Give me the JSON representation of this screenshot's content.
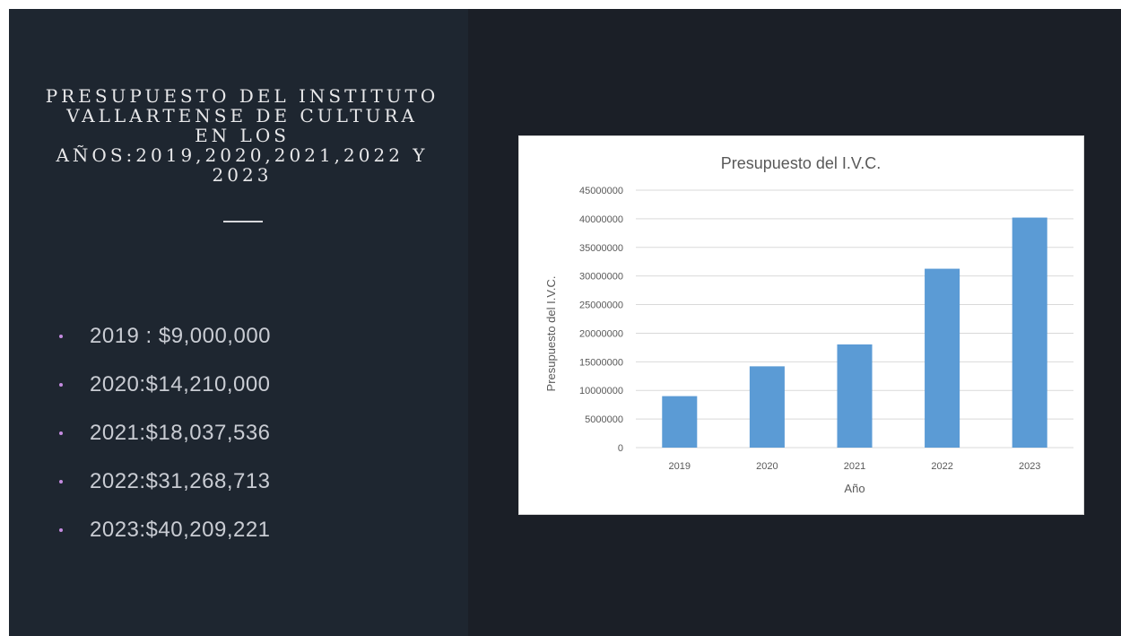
{
  "slide": {
    "title": "Presupuesto del Instituto Vallartense de Cultura en los años:2019,2020,2021,2022 y 2023",
    "bullets": [
      "2019 : $9,000,000",
      "2020:$14,210,000",
      "2021:$18,037,536",
      "2022:$31,268,713",
      "2023:$40,209,221"
    ],
    "colors": {
      "left_panel": "#1e2630",
      "right_panel": "#1b1f27",
      "bullet": "#c58be0",
      "bar": "#5b9bd5"
    }
  },
  "chart_data": {
    "type": "bar",
    "title": "Presupuesto del I.V.C.",
    "xlabel": "Año",
    "ylabel": "Presupuesto del I.V.C.",
    "categories": [
      "2019",
      "2020",
      "2021",
      "2022",
      "2023"
    ],
    "values": [
      9000000,
      14210000,
      18037536,
      31268713,
      40209221
    ],
    "ylim": [
      0,
      45000000
    ],
    "yticks": [
      0,
      5000000,
      10000000,
      15000000,
      20000000,
      25000000,
      30000000,
      35000000,
      40000000,
      45000000
    ],
    "grid": true,
    "legend": "none",
    "color": "#5b9bd5"
  }
}
